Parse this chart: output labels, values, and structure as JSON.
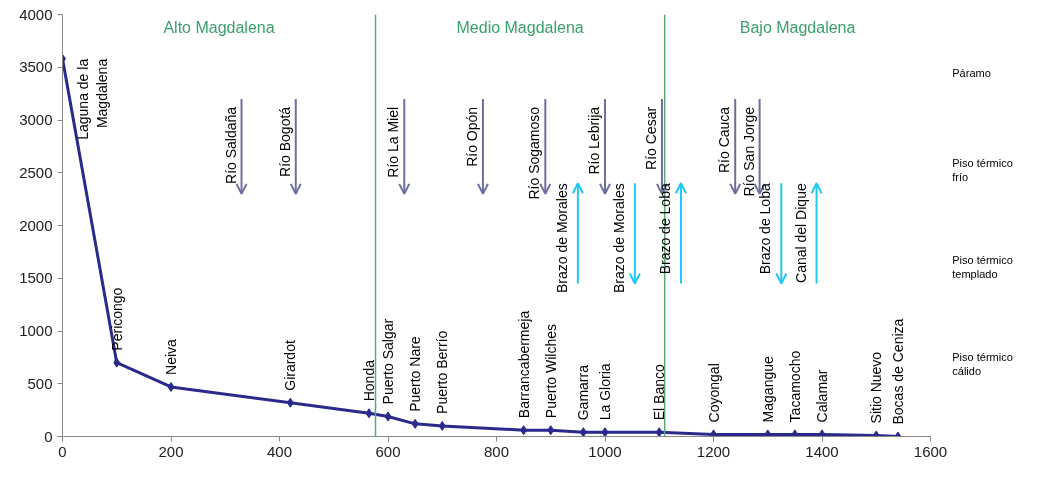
{
  "chart_data": {
    "type": "line",
    "marker": "diamond",
    "line_style": "solid",
    "grid": false,
    "x": [
      0,
      100,
      200,
      420,
      565,
      600,
      650,
      700,
      850,
      900,
      960,
      1000,
      1100,
      1200,
      1300,
      1350,
      1400,
      1500,
      1540
    ],
    "series": [
      {
        "color": "#2a2a8c",
        "values": [
          3580,
          700,
          470,
          320,
          220,
          190,
          120,
          100,
          60,
          60,
          40,
          40,
          40,
          20,
          20,
          20,
          20,
          10,
          0
        ]
      }
    ],
    "xlim": [
      0,
      1600
    ],
    "xticks": [
      0,
      200,
      400,
      600,
      800,
      1000,
      1200,
      1400,
      1600
    ],
    "ylim": [
      0,
      4000
    ],
    "yticks": [
      0,
      500,
      1000,
      1500,
      2000,
      2500,
      3000,
      3500,
      4000
    ],
    "ref_lines": [
      {
        "axis": "x",
        "value": 577,
        "color": "#5aaa78"
      },
      {
        "axis": "x",
        "value": 1110,
        "color": "#5aaa78"
      },
      {
        "axis": "x",
        "value": 330,
        "label": "Río Saldaña",
        "color": "#6e6e9e"
      },
      {
        "axis": "x",
        "value": 430,
        "label": "Río Bogotá",
        "color": "#6e6e9e"
      },
      {
        "axis": "x",
        "value": 630,
        "label": "Río La Miel",
        "color": "#6e6e9e"
      },
      {
        "axis": "x",
        "value": 775,
        "label": "Río Opón",
        "color": "#6e6e9e"
      },
      {
        "axis": "x",
        "value": 890,
        "label": "Río Sogamoso",
        "color": "#6e6e9e"
      },
      {
        "axis": "x",
        "value": 1000,
        "label": "Río Lebrija",
        "color": "#6e6e9e"
      },
      {
        "axis": "x",
        "value": 1105,
        "label": "Río Cesar",
        "color": "#6e6e9e"
      },
      {
        "axis": "x",
        "value": 1240,
        "label": "Río Cauca",
        "color": "#6e6e9e"
      },
      {
        "axis": "x",
        "value": 1285,
        "label": "Río San Jorge",
        "color": "#6e6e9e"
      },
      {
        "axis": "x",
        "value": 950,
        "label": "Brazo de Morales",
        "color": "#1ec8f0"
      },
      {
        "axis": "x",
        "value": 1055,
        "label": "Brazo de Morales",
        "color": "#1ec8f0"
      },
      {
        "axis": "x",
        "value": 1140,
        "label": "Brazo de Loba",
        "color": "#1ec8f0"
      },
      {
        "axis": "x",
        "value": 1325,
        "label": "Brazo de Loba",
        "color": "#1ec8f0"
      },
      {
        "axis": "x",
        "value": 1390,
        "label": "Canal del Dique",
        "color": "#1ec8f0"
      }
    ],
    "annotations": [
      "Alto Magdalena",
      "Medio Magdalena",
      "Bajo Magdalena",
      {
        "text": "Laguna de la\nMagdalena",
        "x": 0,
        "y": 3580
      },
      {
        "text": "Pericongo",
        "x": 100,
        "y": 700
      },
      {
        "text": "Neiva",
        "x": 200,
        "y": 470
      },
      {
        "text": "Girardot",
        "x": 420,
        "y": 320
      },
      {
        "text": "Honda",
        "x": 565,
        "y": 220
      },
      {
        "text": "Puerto Salgar",
        "x": 600,
        "y": 190
      },
      {
        "text": "Puerto Nare",
        "x": 650,
        "y": 120
      },
      {
        "text": "Puerto Berrío",
        "x": 700,
        "y": 100
      },
      {
        "text": "Barrancabermeja",
        "x": 850,
        "y": 60
      },
      {
        "text": "Puerto Wilches",
        "x": 900,
        "y": 60
      },
      {
        "text": "Gamarra",
        "x": 960,
        "y": 40
      },
      {
        "text": "La Gloria",
        "x": 1000,
        "y": 40
      },
      {
        "text": "El Banco",
        "x": 1100,
        "y": 40
      },
      {
        "text": "Coyongal",
        "x": 1200,
        "y": 20
      },
      {
        "text": "Magangue",
        "x": 1300,
        "y": 20
      },
      {
        "text": "Tacamocho",
        "x": 1350,
        "y": 20
      },
      {
        "text": "Calamar",
        "x": 1400,
        "y": 20
      },
      {
        "text": "Sitio Nuevo",
        "x": 1500,
        "y": 10
      },
      {
        "text": "Bocas de Ceniza",
        "x": 1540,
        "y": 0
      },
      "Páramo",
      "Piso térmico frío",
      "Piso térmico templado",
      "Piso térmico cálido"
    ]
  }
}
